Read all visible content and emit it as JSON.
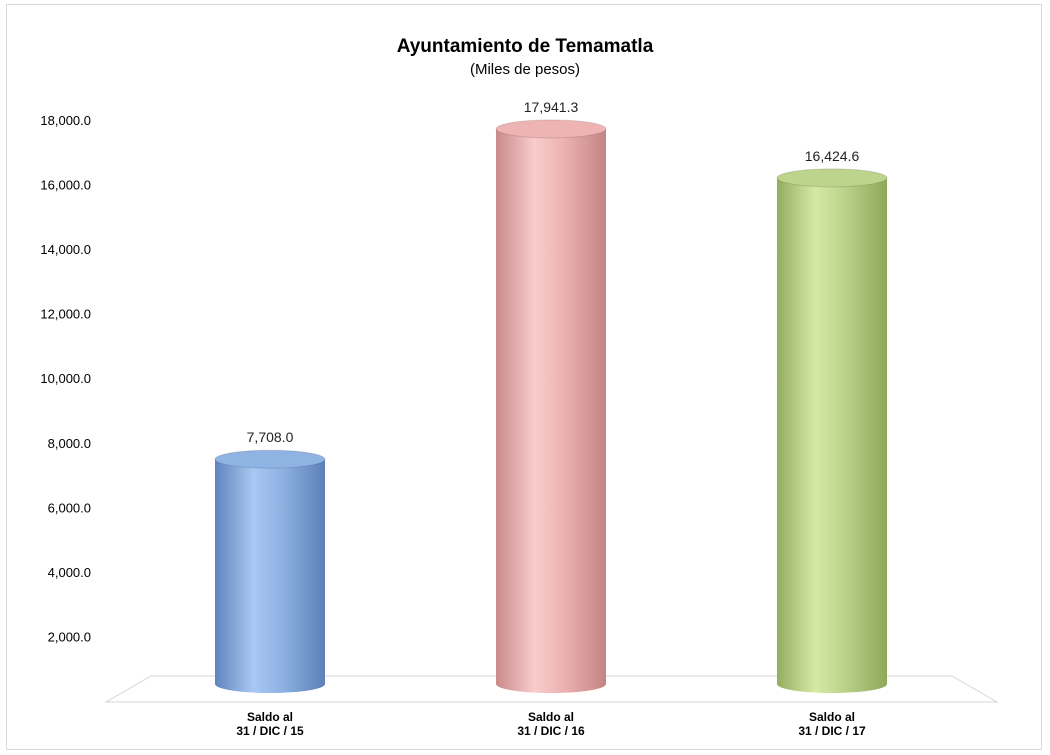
{
  "chart_data": {
    "type": "bar",
    "title": "Ayuntamiento de Temamatla",
    "subtitle": "(Miles de pesos)",
    "categories": [
      [
        "Saldo al",
        "31 / DIC / 15"
      ],
      [
        "Saldo al",
        "31 / DIC / 16"
      ],
      [
        "Saldo al",
        "31 / DIC / 17"
      ]
    ],
    "values": [
      7708.0,
      17941.3,
      16424.6
    ],
    "value_labels": [
      "7,708.0",
      "17,941.3",
      "16,424.6"
    ],
    "ylim": [
      0,
      18000
    ],
    "yticks": [
      {
        "value": 2000,
        "label": "2,000.0"
      },
      {
        "value": 4000,
        "label": "4,000.0"
      },
      {
        "value": 6000,
        "label": "6,000.0"
      },
      {
        "value": 8000,
        "label": "8,000.0"
      },
      {
        "value": 10000,
        "label": "10,000.0"
      },
      {
        "value": 12000,
        "label": "12,000.0"
      },
      {
        "value": 14000,
        "label": "14,000.0"
      },
      {
        "value": 16000,
        "label": "16,000.0"
      },
      {
        "value": 18000,
        "label": "18,000.0"
      }
    ],
    "colors": [
      "#8fb3e3",
      "#eeb3b3",
      "#bcd48c"
    ],
    "bar_style": "3d-cylinder",
    "grid": false,
    "legend": "none"
  }
}
